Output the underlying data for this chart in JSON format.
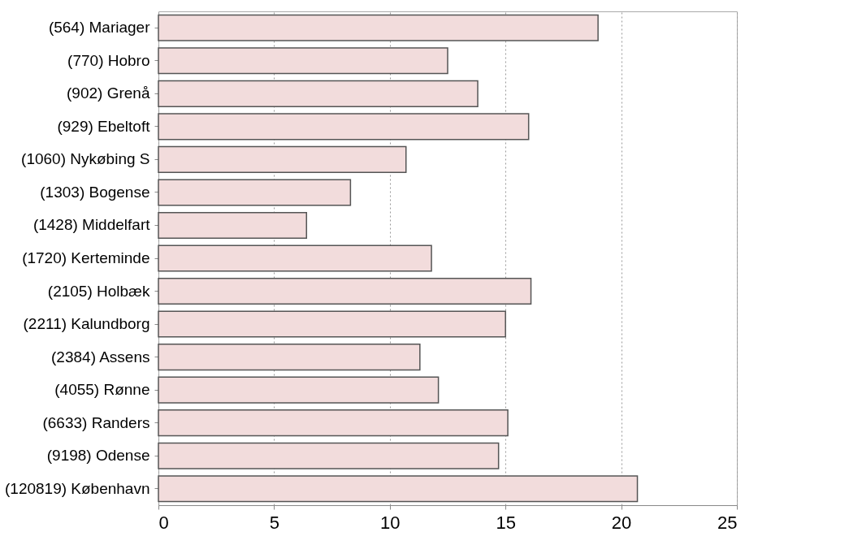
{
  "chart_data": {
    "type": "bar",
    "orientation": "horizontal",
    "categories": [
      "(564) Mariager",
      "(770) Hobro",
      "(902) Grenå",
      "(929) Ebeltoft",
      "(1060) Nykøbing S",
      "(1303) Bogense",
      "(1428) Middelfart",
      "(1720) Kerteminde",
      "(2105) Holbæk",
      "(2211) Kalundborg",
      "(2384) Assens",
      "(4055) Rønne",
      "(6633) Randers",
      "(9198) Odense",
      "(120819) København"
    ],
    "values": [
      19.0,
      12.5,
      13.8,
      16.0,
      10.7,
      8.3,
      6.4,
      11.8,
      16.1,
      15.0,
      11.3,
      12.1,
      15.1,
      14.7,
      20.7
    ],
    "color": "#f2dcdc",
    "xlim": [
      0,
      25
    ],
    "xticks": [
      0,
      5,
      10,
      15,
      20,
      25
    ],
    "grid": "x"
  }
}
